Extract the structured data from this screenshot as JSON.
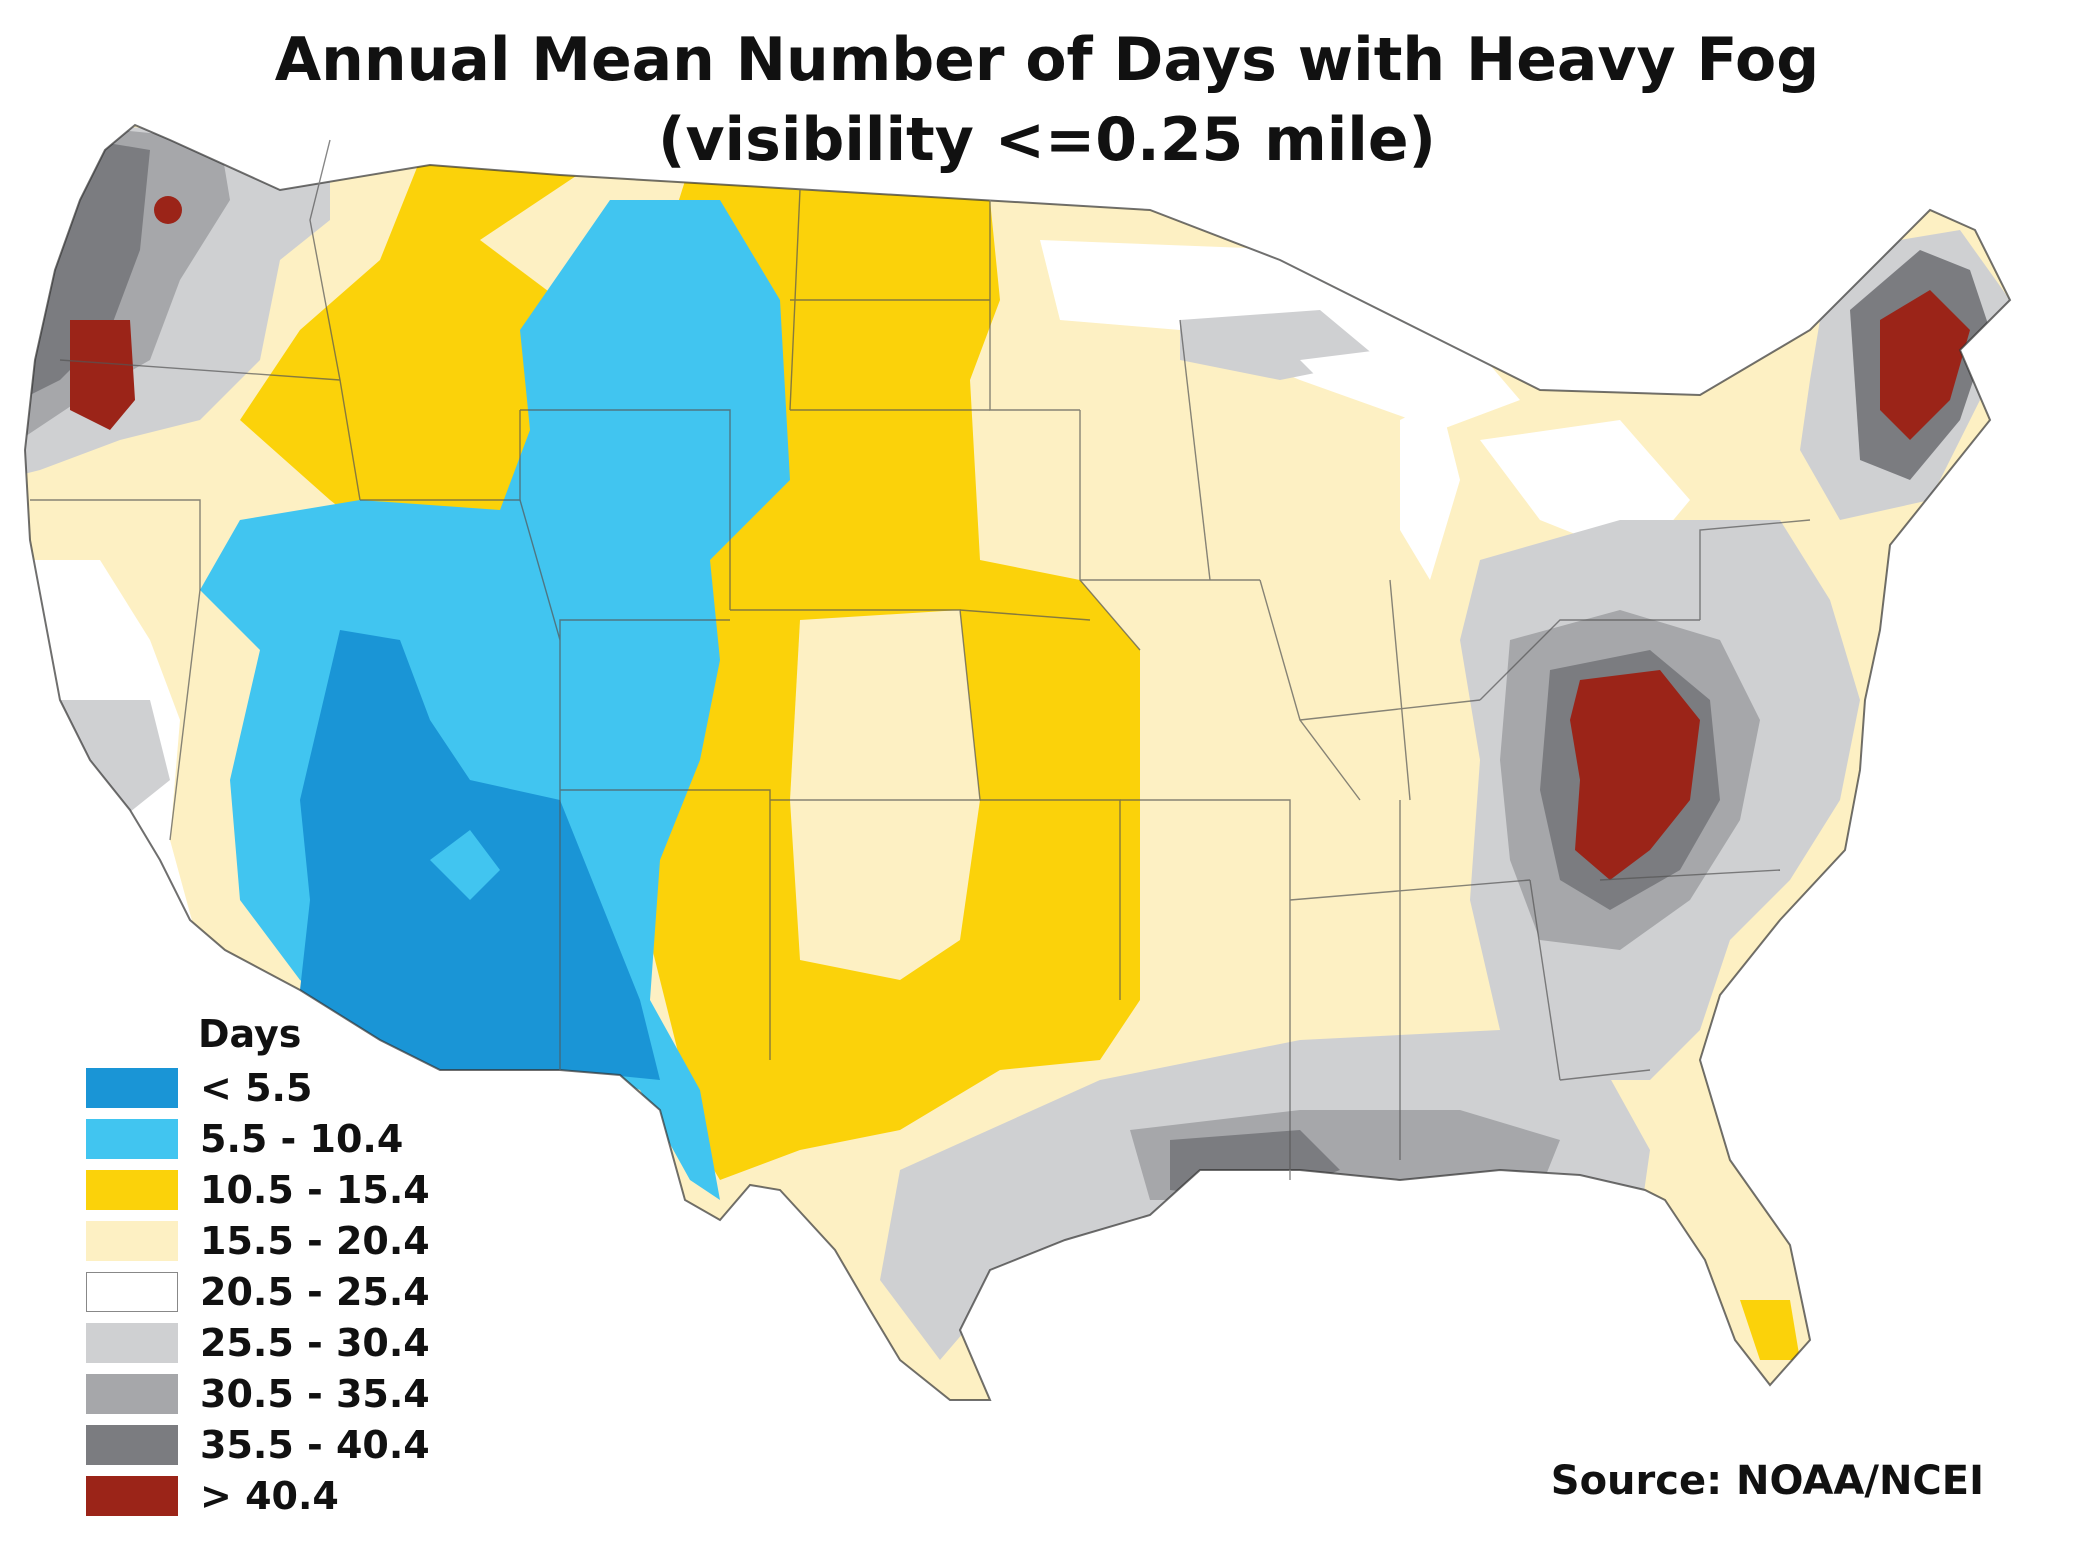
{
  "title": "Annual Mean Number of Days with Heavy Fog",
  "subtitle": "(visibility <=0.25 mile)",
  "legend": {
    "title": "Days",
    "items": [
      {
        "label": "< 5.5",
        "color": "#1a95d6"
      },
      {
        "label": "5.5 - 10.4",
        "color": "#41c5f0"
      },
      {
        "label": "10.5 - 15.4",
        "color": "#fbd20a"
      },
      {
        "label": "15.5 - 20.4",
        "color": "#fdf0c3"
      },
      {
        "label": "20.5 - 25.4",
        "color": "#ffffff"
      },
      {
        "label": "25.5 - 30.4",
        "color": "#cfd0d2"
      },
      {
        "label": "30.5 - 35.4",
        "color": "#a6a7aa"
      },
      {
        "label": "35.5 - 40.4",
        "color": "#7b7c80"
      },
      {
        "label": "> 40.4",
        "color": "#9b2418"
      }
    ]
  },
  "source": "Source: NOAA/NCEI"
}
